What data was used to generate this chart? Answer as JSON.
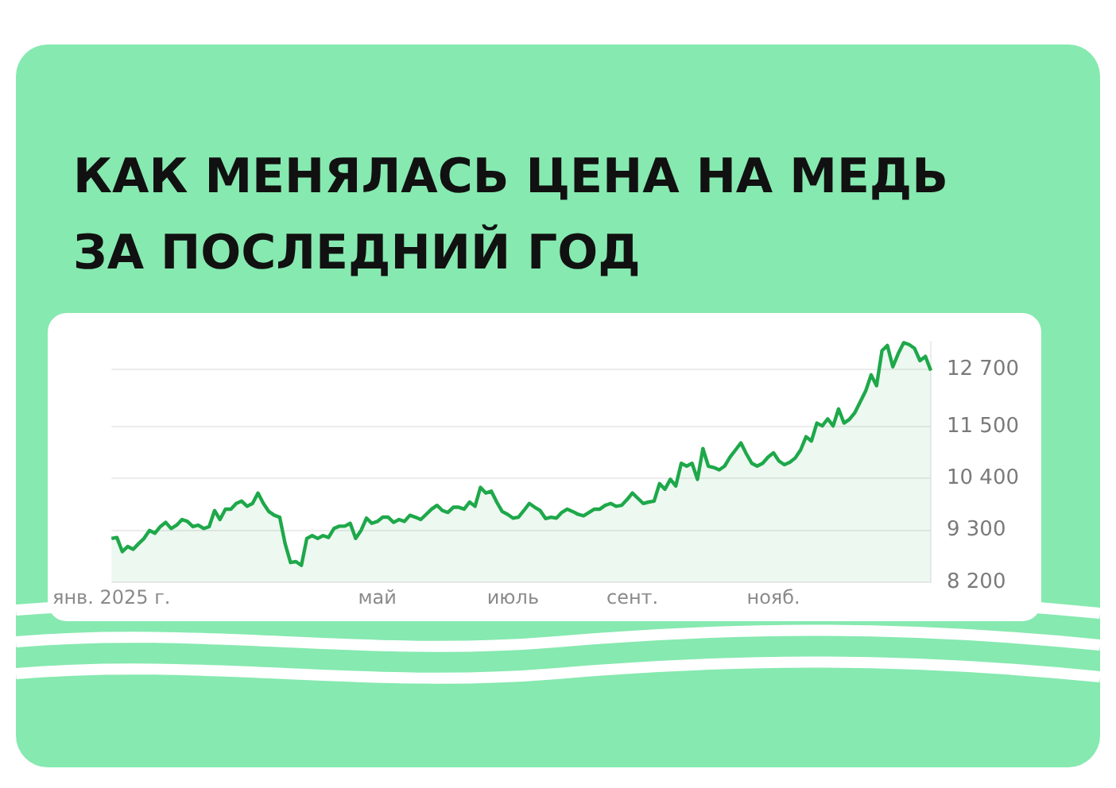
{
  "chart_data": {
    "type": "area",
    "title": "КАК МЕНЯЛАСЬ ЦЕНА НА МЕДЬ ЗА ПОСЛЕДНИЙ ГОД",
    "categories": [
      "янв. 2025 г.",
      null,
      null,
      null,
      null,
      null,
      null,
      null,
      null,
      null,
      null,
      null,
      null,
      null,
      null,
      null,
      null,
      null,
      null,
      null,
      null,
      null,
      null,
      null,
      null,
      null,
      null,
      null,
      null,
      null,
      null,
      null,
      null,
      null,
      null,
      null,
      null,
      null,
      null,
      null,
      null,
      null,
      null,
      null,
      null,
      null,
      null,
      null,
      null,
      "май",
      null,
      null,
      null,
      null,
      null,
      null,
      null,
      null,
      null,
      null,
      null,
      null,
      null,
      null,
      null,
      null,
      null,
      null,
      null,
      null,
      null,
      null,
      null,
      null,
      "июль",
      null,
      null,
      null,
      null,
      null,
      null,
      null,
      null,
      null,
      null,
      null,
      null,
      null,
      null,
      null,
      null,
      null,
      null,
      null,
      null,
      null,
      "сент.",
      null,
      null,
      null,
      null,
      null,
      null,
      null,
      null,
      null,
      null,
      null,
      null,
      null,
      null,
      null,
      null,
      null,
      null,
      null,
      null,
      null,
      null,
      null,
      null,
      null,
      "нояб.",
      null,
      null,
      null,
      null,
      null,
      null,
      null,
      null,
      null,
      null,
      null,
      null,
      null,
      null,
      null,
      null,
      null,
      null,
      null,
      null,
      null,
      null,
      null,
      null,
      null,
      null,
      null,
      null,
      null
    ],
    "yticks": [
      {
        "value": 8200,
        "label": "8 200"
      },
      {
        "value": 9300,
        "label": "9 300"
      },
      {
        "value": 10400,
        "label": "10 400"
      },
      {
        "value": 11500,
        "label": "11 500"
      },
      {
        "value": 12700,
        "label": "12 700"
      }
    ],
    "ylim": [
      8200,
      13300
    ],
    "grid": "y",
    "legend": false,
    "marker": "none",
    "line_style": "solid",
    "series": [
      {
        "color": "#1ea84a",
        "values": [
          9130,
          9150,
          8850,
          8960,
          8900,
          9020,
          9130,
          9300,
          9240,
          9380,
          9470,
          9340,
          9410,
          9530,
          9490,
          9380,
          9410,
          9340,
          9380,
          9720,
          9530,
          9750,
          9750,
          9870,
          9920,
          9810,
          9870,
          10090,
          9870,
          9700,
          9620,
          9580,
          9020,
          8620,
          8640,
          8560,
          9130,
          9190,
          9130,
          9190,
          9150,
          9340,
          9390,
          9390,
          9450,
          9130,
          9300,
          9560,
          9450,
          9490,
          9580,
          9580,
          9470,
          9530,
          9490,
          9620,
          9580,
          9530,
          9640,
          9750,
          9830,
          9720,
          9680,
          9790,
          9790,
          9750,
          9900,
          9810,
          10210,
          10090,
          10130,
          9900,
          9700,
          9640,
          9560,
          9580,
          9720,
          9870,
          9790,
          9720,
          9550,
          9580,
          9560,
          9680,
          9750,
          9700,
          9640,
          9610,
          9680,
          9750,
          9750,
          9830,
          9870,
          9810,
          9830,
          9950,
          10090,
          9980,
          9870,
          9900,
          9920,
          10290,
          10170,
          10380,
          10240,
          10720,
          10660,
          10720,
          10380,
          11030,
          10660,
          10630,
          10580,
          10660,
          10850,
          11000,
          11150,
          10920,
          10720,
          10660,
          10720,
          10850,
          10940,
          10770,
          10690,
          10740,
          10830,
          11000,
          11280,
          11190,
          11570,
          11510,
          11660,
          11510,
          11870,
          11570,
          11650,
          11790,
          12020,
          12250,
          12590,
          12360,
          13100,
          13210,
          12760,
          13040,
          13270,
          13230,
          13150,
          12890,
          12980,
          12680
        ]
      }
    ]
  }
}
